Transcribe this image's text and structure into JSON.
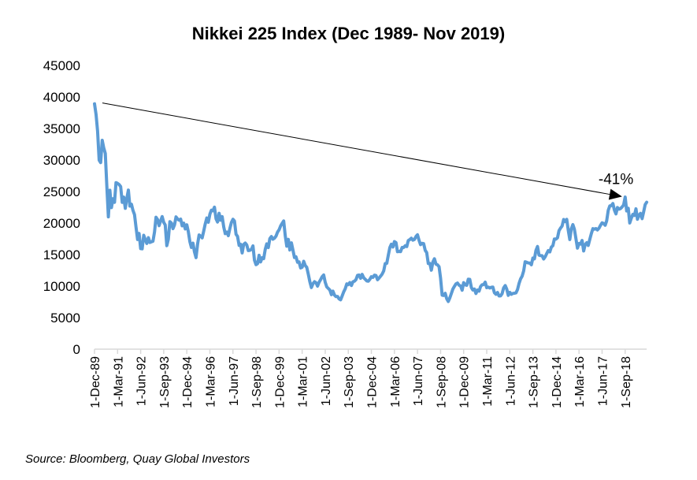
{
  "chart_data": {
    "type": "line",
    "title": "Nikkei 225 Index (Dec 1989- Nov 2019)",
    "source": "Source: Bloomberg, Quay Global Investors",
    "xlabel": "",
    "ylabel": "",
    "ylim": [
      0,
      45000
    ],
    "yticks": [
      "0",
      "5000",
      "10000",
      "15000",
      "20000",
      "25000",
      "30000",
      "35000",
      "40000",
      "45000"
    ],
    "xticks": [
      "1-Dec-89",
      "1-Mar-91",
      "1-Jun-92",
      "1-Sep-93",
      "1-Dec-94",
      "1-Mar-96",
      "1-Jun-97",
      "1-Sep-98",
      "1-Dec-99",
      "1-Mar-01",
      "1-Jun-02",
      "1-Sep-03",
      "1-Dec-04",
      "1-Mar-06",
      "1-Jun-07",
      "1-Sep-08",
      "1-Dec-09",
      "1-Mar-11",
      "1-Jun-12",
      "1-Sep-13",
      "1-Dec-14",
      "1-Mar-16",
      "1-Jun-17",
      "1-Sep-18"
    ],
    "grid": false,
    "legend": "none",
    "line_color": "#5B9BD5",
    "series": [
      {
        "monthly_by_year": {
          "1989": [
            38916
          ],
          "1990": [
            37189,
            34592,
            29980,
            29585,
            33131,
            31940,
            31036,
            25978,
            20984,
            25194,
            22455,
            23849
          ],
          "1991": [
            23293,
            26409,
            26292,
            26111,
            25790,
            23291,
            24121,
            22335,
            23916,
            25222,
            22688,
            22984
          ],
          "1992": [
            22023,
            21339,
            19346,
            17391,
            18348,
            15951,
            15910,
            18061,
            17399,
            16767,
            17684,
            16925
          ],
          "1993": [
            17024,
            17113,
            18591,
            20919,
            20552,
            19590,
            20380,
            21027,
            20106,
            19703,
            16408,
            17417
          ],
          "1994": [
            20229,
            19997,
            19112,
            19725,
            20974,
            20644,
            20449,
            20629,
            19564,
            19990,
            19076,
            19723
          ],
          "1995": [
            18650,
            17054,
            16140,
            16807,
            15437,
            14517,
            16678,
            18117,
            17913,
            17655,
            18744,
            19868
          ],
          "1996": [
            20813,
            20125,
            21407,
            22041,
            21956,
            22531,
            20693,
            20167,
            21556,
            20467,
            21020,
            19361
          ],
          "1997": [
            18330,
            18557,
            18003,
            19151,
            20069,
            20605,
            20331,
            18229,
            17888,
            16459,
            16636,
            15259
          ],
          "1998": [
            16628,
            16831,
            16527,
            15641,
            15671,
            15831,
            16379,
            14108,
            13406,
            13565,
            14883,
            13842
          ],
          "1999": [
            14499,
            14368,
            15837,
            16701,
            16112,
            17530,
            17862,
            17437,
            17605,
            17942,
            18558,
            18934
          ],
          "2000": [
            19540,
            19960,
            20337,
            17974,
            16332,
            17411,
            15727,
            16861,
            15747,
            14540,
            14649,
            13786
          ],
          "2001": [
            13843,
            12884,
            12999,
            13934,
            13262,
            12969,
            11861,
            10714,
            9775,
            10366,
            10697,
            10543
          ],
          "2002": [
            9998,
            10588,
            11025,
            11493,
            11764,
            10622,
            9877,
            9619,
            9383,
            8640,
            9216,
            8579
          ],
          "2003": [
            8340,
            8363,
            7973,
            7831,
            8425,
            9083,
            9563,
            10344,
            10219,
            10560,
            10101,
            10677
          ],
          "2004": [
            10784,
            11042,
            11715,
            11762,
            11237,
            11859,
            11326,
            11082,
            10824,
            10771,
            11069,
            11489
          ],
          "2005": [
            11388,
            11740,
            11669,
            11009,
            11277,
            11584,
            11900,
            12414,
            13574,
            13607,
            14872,
            16111
          ],
          "2006": [
            16650,
            16205,
            17060,
            16906,
            15468,
            15505,
            15457,
            16141,
            16128,
            16399,
            16274,
            17226
          ],
          "2007": [
            17383,
            17604,
            17288,
            17400,
            17876,
            18138,
            17249,
            16569,
            16786,
            16738,
            15681,
            15308
          ],
          "2008": [
            13592,
            13603,
            12526,
            13850,
            14339,
            13481,
            13377,
            13073,
            11260,
            8577,
            8512,
            8860
          ],
          "2009": [
            7994,
            7568,
            8110,
            8828,
            9523,
            9958,
            10357,
            10493,
            10133,
            10035,
            9346,
            10546
          ],
          "2010": [
            10198,
            10126,
            11090,
            11057,
            9769,
            9383,
            9537,
            8824,
            9369,
            9202,
            9937,
            10229
          ],
          "2011": [
            10238,
            10624,
            9755,
            9850,
            9694,
            9816,
            9833,
            8955,
            8700,
            8988,
            8434,
            8455
          ],
          "2012": [
            8803,
            9723,
            10084,
            9521,
            8543,
            9007,
            8695,
            8840,
            8870,
            8928,
            9446,
            10395
          ],
          "2013": [
            11138,
            11559,
            12398,
            13861,
            13775,
            13677,
            13668,
            13389,
            14456,
            14328,
            15662,
            16291
          ],
          "2014": [
            14915,
            14841,
            14828,
            14304,
            14632,
            15162,
            15621,
            15425,
            16174,
            16414,
            17460,
            17451
          ],
          "2015": [
            17674,
            18798,
            19207,
            19520,
            20563,
            20236,
            20585,
            18890,
            17388,
            19083,
            19747,
            19034
          ],
          "2016": [
            17518,
            16027,
            16759,
            16666,
            17235,
            15576,
            16569,
            16887,
            16450,
            17425,
            18308,
            19114
          ],
          "2017": [
            19041,
            19119,
            18909,
            19197,
            19651,
            20033,
            19925,
            19646,
            20356,
            22012,
            22725,
            22765
          ],
          "2018": [
            23098,
            22068,
            21454,
            22468,
            22202,
            22305,
            22554,
            22865,
            24120,
            21920,
            22351,
            20015
          ],
          "2019": [
            20773,
            21385,
            21206,
            22259,
            20601,
            21276,
            21522,
            20704,
            21756,
            22927,
            23294
          ]
        }
      }
    ],
    "annotations": [
      {
        "text": "-41%",
        "type": "arrow",
        "from": {
          "date": "1989-12",
          "value": 38916
        },
        "to": {
          "date": "2018-07",
          "value": 24200
        }
      }
    ]
  }
}
